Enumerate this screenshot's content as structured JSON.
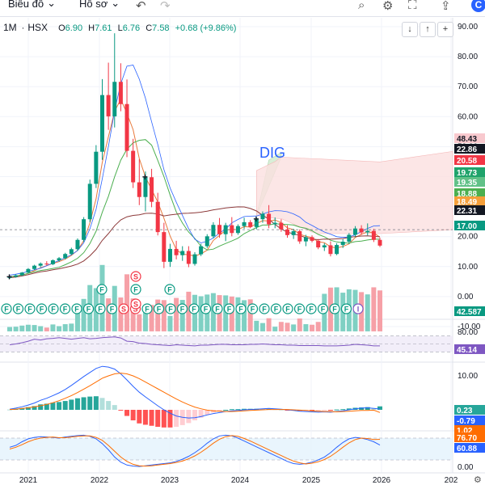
{
  "toolbar": {
    "items": [
      "Biểu đồ",
      "Hồ sơ"
    ],
    "icons": [
      "chevron-down-icon",
      "undo-icon",
      "redo-icon",
      "search-icon",
      "gear-icon",
      "fullscreen-icon",
      "share-icon"
    ]
  },
  "legend": {
    "interval": "1M",
    "exchange": "HSX",
    "open_label": "O",
    "open": "6.90",
    "high_label": "H",
    "high": "7.61",
    "low_label": "L",
    "low": "6.76",
    "close_label": "C",
    "close": "7.58",
    "change": "+0.68 (+9.86%)"
  },
  "controls": [
    "↓",
    "↑",
    "+",
    "×"
  ],
  "colors": {
    "up": "#089981",
    "down": "#f23645",
    "volume_up": "#7fd0c3",
    "volume_down": "#f6a0a7",
    "cloud": "#fbe0e0",
    "cloud_up": "#d8efd8",
    "rsi": "#7e57c2",
    "macd": "#2962ff",
    "signal": "#ff6d00",
    "ma_blue": "#2962ff",
    "ma_orange": "#e8793b",
    "ma_green": "#4caf50",
    "ma_brown": "#8d3a3a"
  },
  "chart_data": [
    {
      "type": "candlestick",
      "name": "DIG",
      "x_axis_labels": [
        "2021",
        "2022",
        "2023",
        "2024",
        "2025",
        "2026",
        "202"
      ],
      "y_ticks": [
        "90.00",
        "80.00",
        "70.00",
        "60.00",
        "50.00",
        "40.00",
        "30.00",
        "20.00",
        "10.00",
        "0.00",
        "-10.00"
      ],
      "ylim": [
        -10,
        90
      ],
      "candles": [
        [
          6.2,
          6.8,
          5.9,
          6.6
        ],
        [
          6.6,
          7.4,
          6.3,
          7.1
        ],
        [
          7.1,
          8.2,
          6.9,
          8.0
        ],
        [
          8.0,
          9.5,
          7.8,
          9.2
        ],
        [
          9.2,
          10.6,
          8.9,
          10.3
        ],
        [
          10.3,
          11.4,
          9.8,
          11.0
        ],
        [
          11.0,
          11.8,
          10.4,
          10.8
        ],
        [
          10.8,
          12.4,
          10.5,
          12.1
        ],
        [
          12.1,
          13.2,
          11.6,
          12.8
        ],
        [
          12.8,
          14.6,
          12.4,
          14.2
        ],
        [
          14.2,
          16.3,
          13.8,
          15.8
        ],
        [
          15.8,
          19.4,
          15.2,
          18.9
        ],
        [
          18.9,
          26.5,
          18.2,
          25.8
        ],
        [
          25.8,
          39.0,
          24.8,
          37.6
        ],
        [
          37.6,
          50.5,
          36.2,
          48.3
        ],
        [
          48.3,
          72.5,
          45.6,
          67.2
        ],
        [
          67.2,
          78.0,
          55.6,
          60.1
        ],
        [
          60.1,
          87.8,
          56.4,
          71.6
        ],
        [
          71.6,
          77.8,
          61.8,
          64.2
        ],
        [
          64.2,
          72.4,
          46.5,
          48.6
        ],
        [
          48.6,
          52.6,
          36.2,
          38.1
        ],
        [
          38.1,
          45.8,
          30.5,
          33.2
        ],
        [
          33.2,
          41.7,
          28.4,
          39.8
        ],
        [
          39.8,
          42.6,
          29.8,
          31.6
        ],
        [
          31.6,
          34.6,
          20.4,
          21.5
        ],
        [
          21.5,
          24.6,
          9.5,
          11.6
        ],
        [
          11.6,
          17.6,
          9.9,
          15.9
        ],
        [
          15.9,
          18.6,
          12.4,
          13.8
        ],
        [
          13.8,
          16.8,
          11.9,
          15.2
        ],
        [
          15.2,
          16.8,
          9.8,
          10.9
        ],
        [
          10.9,
          14.8,
          10.3,
          14.1
        ],
        [
          14.1,
          17.6,
          13.5,
          16.8
        ],
        [
          16.8,
          20.8,
          16.2,
          20.1
        ],
        [
          20.1,
          24.8,
          19.4,
          23.9
        ],
        [
          23.9,
          26.2,
          19.6,
          20.8
        ],
        [
          20.8,
          24.6,
          18.5,
          23.8
        ],
        [
          23.8,
          26.5,
          20.1,
          21.2
        ],
        [
          21.2,
          24.1,
          20.6,
          23.5
        ],
        [
          23.5,
          26.3,
          22.6,
          24.8
        ],
        [
          24.8,
          25.5,
          22.8,
          23.2
        ],
        [
          23.2,
          26.6,
          22.4,
          25.8
        ],
        [
          25.8,
          28.4,
          24.6,
          27.6
        ],
        [
          27.6,
          30.5,
          22.8,
          24.1
        ],
        [
          24.1,
          26.4,
          22.8,
          24.6
        ],
        [
          24.6,
          25.8,
          21.6,
          22.4
        ],
        [
          22.4,
          23.8,
          19.6,
          20.5
        ],
        [
          20.5,
          22.6,
          19.2,
          21.8
        ],
        [
          21.8,
          22.4,
          17.6,
          18.4
        ],
        [
          18.4,
          20.6,
          16.8,
          19.8
        ],
        [
          19.8,
          20.4,
          18.1,
          18.6
        ],
        [
          18.6,
          19.2,
          15.8,
          16.4
        ],
        [
          16.4,
          17.8,
          15.2,
          17.1
        ],
        [
          17.1,
          18.4,
          13.4,
          14.2
        ],
        [
          14.2,
          17.8,
          13.8,
          17.2
        ],
        [
          17.2,
          19.1,
          16.2,
          18.3
        ],
        [
          18.3,
          21.2,
          17.6,
          20.6
        ],
        [
          20.6,
          23.5,
          19.8,
          22.7
        ],
        [
          22.7,
          23.8,
          20.6,
          21.4
        ],
        [
          21.4,
          24.4,
          20.4,
          21.9
        ],
        [
          21.9,
          22.6,
          18.2,
          18.9
        ],
        [
          18.9,
          19.6,
          16.5,
          17.0
        ]
      ],
      "ma_lines": [
        "blue",
        "orange",
        "green",
        "brown"
      ],
      "price_labels": [
        "48.43",
        "22.86",
        "20.58",
        "19.73",
        "19.35",
        "18.88",
        "18.49",
        "22.31",
        "17.00"
      ],
      "volume_label": "42.587",
      "annotation": "DIG",
      "badges_top": [
        "F",
        "S",
        "F",
        "F",
        "S"
      ],
      "badges_bottom": [
        "F",
        "F",
        "F",
        "F",
        "F",
        "F",
        "F",
        "F",
        "F",
        "F",
        "S",
        "S",
        "F",
        "F",
        "F",
        "F",
        "F",
        "F",
        "F",
        "F",
        "F",
        "F",
        "F",
        "F",
        "F",
        "F",
        "F",
        "F",
        "F",
        "F",
        "I"
      ]
    },
    {
      "type": "line",
      "name": "RSI",
      "y_ticks": [
        "80.00"
      ],
      "values": [
        48,
        50,
        53,
        57,
        62,
        60,
        63,
        64,
        66,
        64,
        62,
        64,
        66,
        63,
        64,
        66,
        67,
        68,
        65,
        57,
        56,
        52,
        51,
        49,
        48,
        47,
        46,
        48,
        47,
        46,
        45,
        47,
        47,
        48,
        49,
        49,
        48,
        48,
        48,
        49,
        49,
        50,
        49,
        48,
        48,
        47,
        47,
        46,
        46,
        46,
        46,
        45,
        45,
        45,
        46,
        47,
        49,
        48,
        47,
        45,
        45
      ],
      "last_label": "45.14"
    },
    {
      "type": "line",
      "name": "MACD",
      "y_ticks": [
        "10.00",
        "0.00"
      ],
      "macd": [
        0.2,
        0.5,
        0.9,
        1.4,
        2.0,
        2.8,
        3.4,
        4.2,
        5.0,
        6.0,
        7.2,
        8.5,
        9.8,
        11.0,
        12.2,
        12.8,
        12.6,
        12.0,
        10.6,
        8.8,
        6.9,
        5.2,
        3.8,
        2.5,
        1.2,
        0.0,
        -1.0,
        -1.8,
        -2.2,
        -2.4,
        -2.3,
        -2.0,
        -1.5,
        -1.1,
        -0.8,
        -0.5,
        -0.3,
        -0.2,
        0.0,
        0.1,
        0.2,
        0.3,
        0.4,
        0.3,
        0.2,
        0.0,
        -0.2,
        -0.4,
        -0.5,
        -0.6,
        -0.7,
        -0.6,
        -0.7,
        -0.5,
        -0.3,
        0.0,
        0.3,
        0.5,
        0.6,
        0.4,
        0.23
      ],
      "signal": [
        0.1,
        0.2,
        0.4,
        0.6,
        0.9,
        1.2,
        1.6,
        2.1,
        2.7,
        3.4,
        4.2,
        5.1,
        6.1,
        7.1,
        8.2,
        9.3,
        10.0,
        10.6,
        10.8,
        10.6,
        10.0,
        9.2,
        8.2,
        7.2,
        6.2,
        5.2,
        4.2,
        3.2,
        2.3,
        1.5,
        0.8,
        0.3,
        -0.1,
        -0.3,
        -0.4,
        -0.5,
        -0.5,
        -0.4,
        -0.3,
        -0.2,
        -0.1,
        0.0,
        0.1,
        0.1,
        0.1,
        0.1,
        0.0,
        -0.1,
        -0.2,
        -0.3,
        -0.4,
        -0.5,
        -0.5,
        -0.6,
        -0.5,
        -0.4,
        -0.3,
        -0.2,
        -0.2,
        -0.1,
        -0.79
      ],
      "hist_labels": [
        "0.23",
        "-0.79",
        "1.02"
      ]
    },
    {
      "type": "line",
      "name": "Stochastic",
      "y_ticks": [
        "80.00",
        "0.00"
      ],
      "k": [
        55,
        60,
        70,
        78,
        82,
        84,
        83,
        82,
        80,
        83,
        85,
        87,
        88,
        85,
        78,
        65,
        48,
        28,
        14,
        6,
        3,
        2,
        4,
        6,
        8,
        10,
        12,
        16,
        22,
        30,
        40,
        52,
        66,
        78,
        86,
        88,
        86,
        80,
        72,
        64,
        56,
        48,
        40,
        32,
        24,
        16,
        10,
        8,
        10,
        14,
        20,
        28,
        40,
        55,
        68,
        78,
        82,
        80,
        76,
        70,
        60.88
      ],
      "d": [
        50,
        55,
        62,
        70,
        76,
        80,
        82,
        83,
        81,
        81,
        83,
        85,
        86,
        86,
        82,
        74,
        60,
        44,
        28,
        16,
        8,
        4,
        3,
        4,
        6,
        8,
        10,
        13,
        17,
        23,
        31,
        41,
        53,
        66,
        77,
        84,
        87,
        85,
        79,
        72,
        64,
        56,
        48,
        40,
        32,
        24,
        17,
        12,
        9,
        11,
        15,
        21,
        30,
        42,
        55,
        67,
        76,
        80,
        79,
        76,
        76.7
      ],
      "last_labels": [
        "76.70",
        "60.88"
      ]
    }
  ]
}
